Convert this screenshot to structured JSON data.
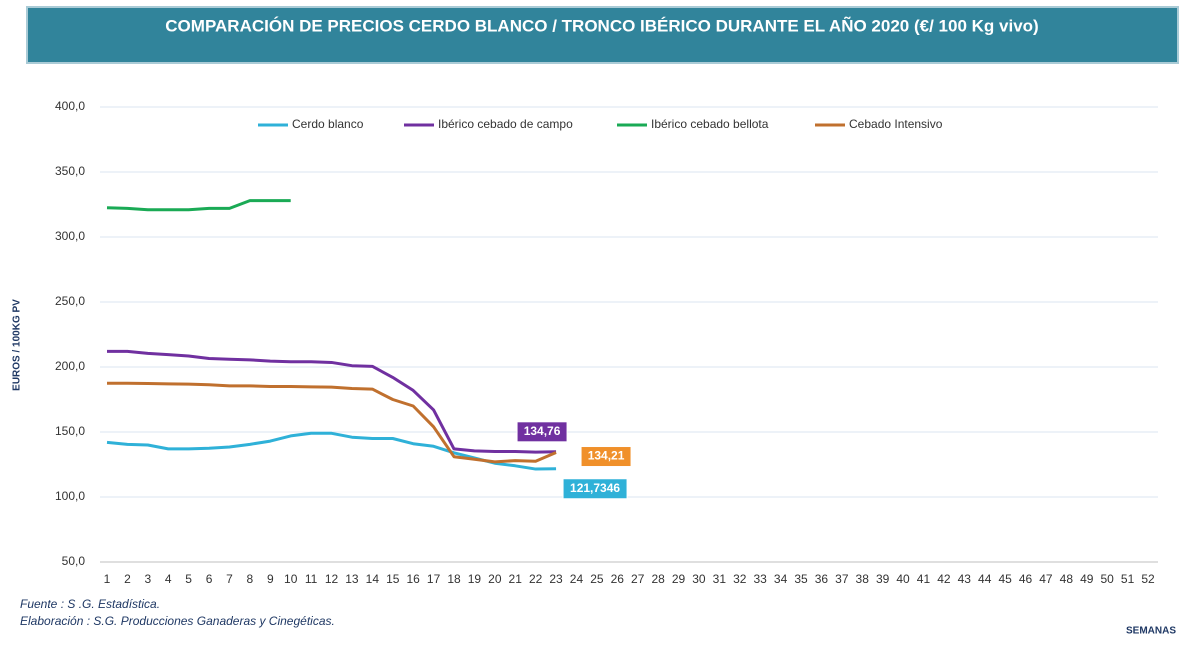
{
  "chart_data": {
    "type": "line",
    "title": "COMPARACIÓN DE PRECIOS CERDO BLANCO / TRONCO IBÉRICO DURANTE EL AÑO 2020 (€/ 100 Kg vivo)",
    "y_label": "EUROS / 100KG PV",
    "x_label": "SEMANAS",
    "footnotes": [
      "Fuente :  S .G. Estadística.",
      "Elaboración : S.G. Producciones Ganaderas y Cinegéticas."
    ],
    "categories": [
      1,
      2,
      3,
      4,
      5,
      6,
      7,
      8,
      9,
      10,
      11,
      12,
      13,
      14,
      15,
      16,
      17,
      18,
      19,
      20,
      21,
      22,
      23,
      24,
      25,
      26,
      27,
      28,
      29,
      30,
      31,
      32,
      33,
      34,
      35,
      36,
      37,
      38,
      39,
      40,
      41,
      42,
      43,
      44,
      45,
      46,
      47,
      48,
      49,
      50,
      51,
      52
    ],
    "series": [
      {
        "name": "Cerdo blanco",
        "color": "#2fb1d8",
        "values": [
          142,
          140.5,
          140,
          137,
          137,
          137.5,
          138.5,
          140.5,
          143,
          147,
          149,
          149,
          146,
          145,
          145,
          141,
          139,
          134,
          130,
          126,
          124,
          121.5,
          121.7346,
          null,
          null,
          null,
          null,
          null,
          null,
          null,
          null,
          null,
          null,
          null,
          null,
          null,
          null,
          null,
          null,
          null,
          null,
          null,
          null,
          null,
          null,
          null,
          null,
          null,
          null,
          null,
          null,
          null
        ],
        "value_labels": [
          null,
          null,
          null,
          null,
          null,
          null,
          null,
          null,
          null,
          null,
          null,
          null,
          null,
          null,
          null,
          null,
          null,
          null,
          null,
          null,
          null,
          null,
          "121,7346",
          null,
          null,
          null,
          null,
          null,
          null,
          null,
          null,
          null,
          null,
          null,
          null,
          null,
          null,
          null,
          null,
          null,
          null,
          null,
          null,
          null,
          null,
          null,
          null,
          null,
          null,
          null,
          null,
          null
        ]
      },
      {
        "name": "Ibérico cebado de campo",
        "color": "#7030a0",
        "values": [
          212,
          212,
          210.5,
          209.5,
          208.5,
          206.5,
          206,
          205.5,
          204.5,
          204,
          204,
          203.5,
          201,
          200.5,
          192,
          182,
          167,
          137,
          135.5,
          135,
          135,
          134.5,
          134.76,
          null,
          null,
          null,
          null,
          null,
          null,
          null,
          null,
          null,
          null,
          null,
          null,
          null,
          null,
          null,
          null,
          null,
          null,
          null,
          null,
          null,
          null,
          null,
          null,
          null,
          null,
          null,
          null,
          null
        ],
        "value_labels": [
          null,
          null,
          null,
          null,
          null,
          null,
          null,
          null,
          null,
          null,
          null,
          null,
          null,
          null,
          null,
          null,
          null,
          null,
          null,
          null,
          null,
          null,
          "134,76",
          null,
          null,
          null,
          null,
          null,
          null,
          null,
          null,
          null,
          null,
          null,
          null,
          null,
          null,
          null,
          null,
          null,
          null,
          null,
          null,
          null,
          null,
          null,
          null,
          null,
          null,
          null,
          null,
          null
        ]
      },
      {
        "name": "Ibérico cebado bellota",
        "color": "#1aaa55",
        "values": [
          322.5,
          322,
          321,
          321,
          321,
          322,
          322,
          328,
          328,
          328,
          null,
          null,
          null,
          null,
          null,
          null,
          null,
          null,
          null,
          null,
          null,
          null,
          null,
          null,
          null,
          null,
          null,
          null,
          null,
          null,
          null,
          null,
          null,
          null,
          null,
          null,
          null,
          null,
          null,
          null,
          null,
          null,
          null,
          null,
          null,
          null,
          null,
          null,
          null,
          null,
          null,
          null
        ]
      },
      {
        "name": "Cebado Intensivo",
        "color": "#c0702e",
        "values": [
          187.5,
          187.5,
          187.3,
          187,
          186.8,
          186.3,
          185.5,
          185.5,
          185,
          185,
          184.7,
          184.5,
          183.5,
          183,
          175,
          170,
          154,
          131,
          129,
          127,
          128,
          127.5,
          134.21,
          null,
          null,
          null,
          null,
          null,
          null,
          null,
          null,
          null,
          null,
          null,
          null,
          null,
          null,
          null,
          null,
          null,
          null,
          null,
          null,
          null,
          null,
          null,
          null,
          null,
          null,
          null,
          null,
          null
        ],
        "value_labels": [
          null,
          null,
          null,
          null,
          null,
          null,
          null,
          null,
          null,
          null,
          null,
          null,
          null,
          null,
          null,
          null,
          null,
          null,
          null,
          null,
          null,
          null,
          "134,21",
          null,
          null,
          null,
          null,
          null,
          null,
          null,
          null,
          null,
          null,
          null,
          null,
          null,
          null,
          null,
          null,
          null,
          null,
          null,
          null,
          null,
          null,
          null,
          null,
          null,
          null,
          null,
          null,
          null
        ]
      }
    ],
    "ylim": [
      50,
      400
    ],
    "yticks": [
      {
        "value": 50,
        "label": "50,0"
      },
      {
        "value": 100,
        "label": "100,0"
      },
      {
        "value": 150,
        "label": "150,0"
      },
      {
        "value": 200,
        "label": "200,0"
      },
      {
        "value": 250,
        "label": "250,0"
      },
      {
        "value": 300,
        "label": "300,0"
      },
      {
        "value": 350,
        "label": "350,0"
      },
      {
        "value": 400,
        "label": "400,0"
      }
    ],
    "grid": true,
    "legend": "top"
  }
}
